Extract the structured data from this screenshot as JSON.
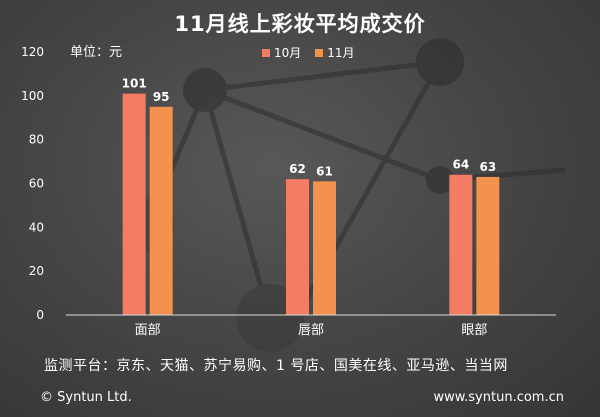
{
  "chart_data": {
    "type": "bar",
    "title": "11月线上彩妆平均成交价",
    "unit_label": "单位：元",
    "categories": [
      "面部",
      "唇部",
      "眼部"
    ],
    "series": [
      {
        "name": "10月",
        "values": [
          101,
          62,
          64
        ],
        "color": "#f47c64"
      },
      {
        "name": "11月",
        "values": [
          95,
          61,
          63
        ],
        "color": "#f2924e"
      }
    ],
    "ylim": [
      0,
      120
    ],
    "yticks": [
      0,
      20,
      40,
      60,
      80,
      100,
      120
    ],
    "grid": false,
    "legend_position": "top-center"
  },
  "source": "监测平台：京东、天猫、苏宁易购、1 号店、国美在线、亚马逊、当当网",
  "footer": {
    "copyright": "© Syntun Ltd.",
    "website": "www.syntun.com.cn"
  },
  "colors": {
    "background": "#474747",
    "text": "#ffffff",
    "axis": "#dcdcdc"
  }
}
